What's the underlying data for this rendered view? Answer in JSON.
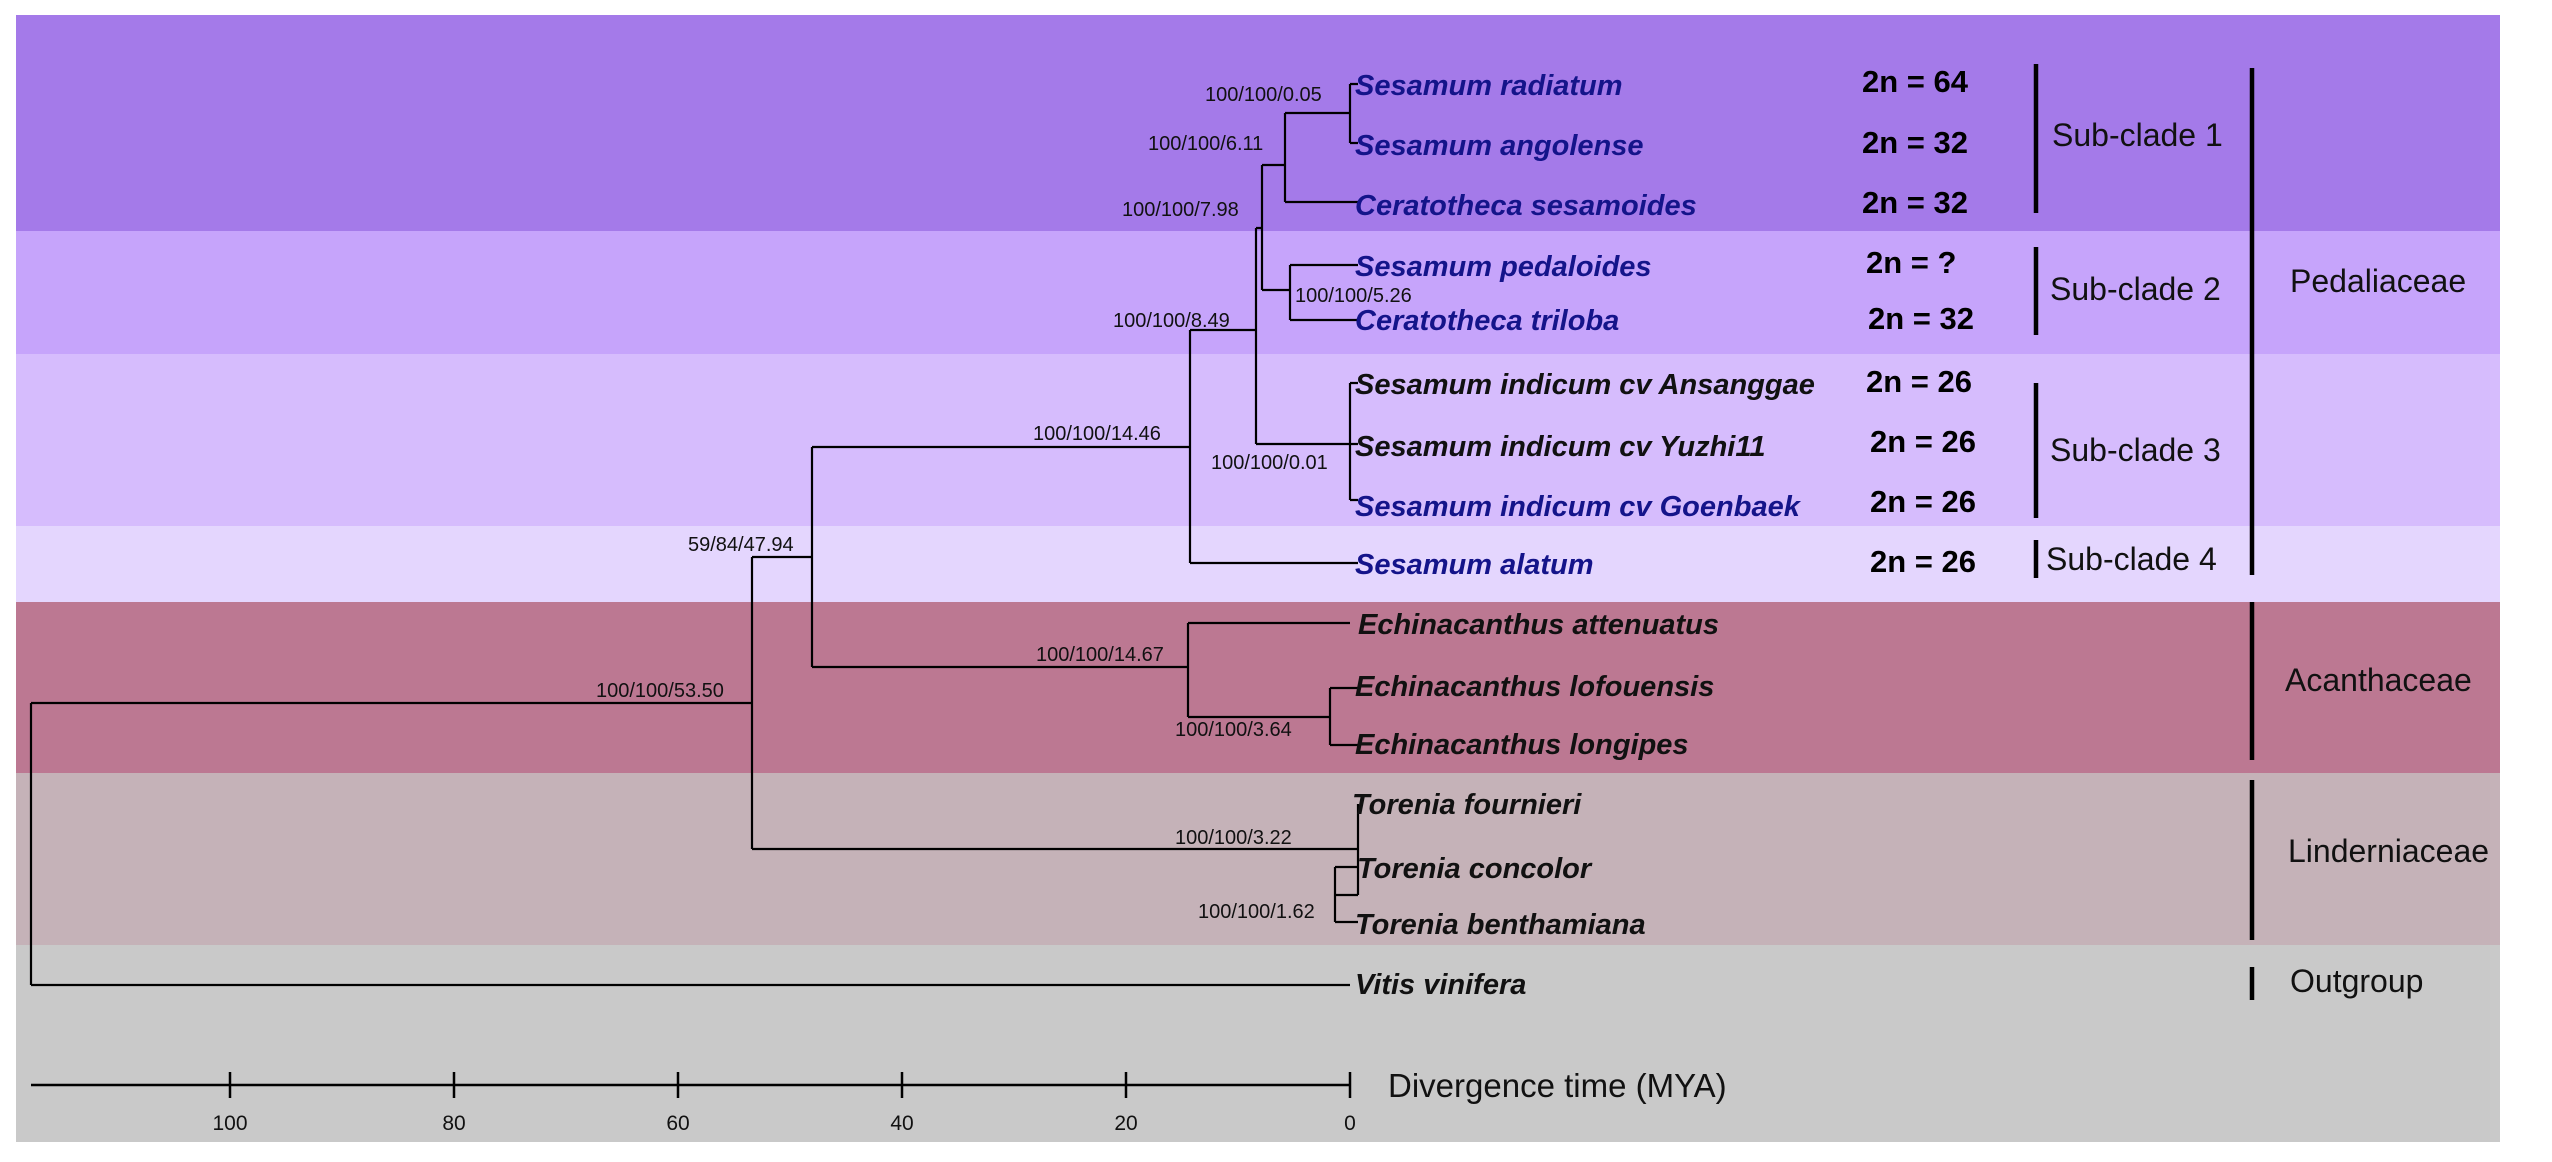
{
  "colors": {
    "band_subclade1": "#a47ae9",
    "band_subclade2": "#c6a4fb",
    "band_subclade3": "#d6bcfd",
    "band_subclade4": "#e4d6fe",
    "band_acanthaceae": "#bc7892",
    "band_linderniaceae": "#c5b2b8",
    "band_outgroup": "#c9c9c9",
    "taxon_blue": "#14148a",
    "taxon_black": "#111111",
    "line": "#000000"
  },
  "taxa": [
    {
      "id": "s-radiatum",
      "name": "Sesamum radiatum",
      "color": "blue"
    },
    {
      "id": "s-angolense",
      "name": "Sesamum angolense",
      "color": "blue"
    },
    {
      "id": "c-sesamoides",
      "name": "Ceratotheca sesamoides",
      "color": "blue"
    },
    {
      "id": "s-pedaloides",
      "name": "Sesamum pedaloides",
      "color": "blue"
    },
    {
      "id": "c-triloba",
      "name": "Ceratotheca triloba",
      "color": "blue"
    },
    {
      "id": "s-indicum-ansanggae",
      "name": "Sesamum indicum cv Ansanggae",
      "color": "black"
    },
    {
      "id": "s-indicum-yuzhi11",
      "name": "Sesamum indicum cv Yuzhi11",
      "color": "black"
    },
    {
      "id": "s-indicum-goenbaek",
      "name": "Sesamum indicum cv Goenbaek",
      "color": "blue"
    },
    {
      "id": "s-alatum",
      "name": "Sesamum alatum",
      "color": "blue"
    },
    {
      "id": "e-attenuatus",
      "name": "Echinacanthus attenuatus",
      "color": "black"
    },
    {
      "id": "e-lofouensis",
      "name": "Echinacanthus lofouensis",
      "color": "black"
    },
    {
      "id": "e-longipes",
      "name": "Echinacanthus longipes",
      "color": "black"
    },
    {
      "id": "t-fournieri",
      "name": "Torenia fournieri",
      "color": "black"
    },
    {
      "id": "t-concolor",
      "name": "Torenia concolor",
      "color": "black"
    },
    {
      "id": "t-benthamiana",
      "name": "Torenia benthamiana",
      "color": "black"
    },
    {
      "id": "v-vinifera",
      "name": "Vitis vinifera",
      "color": "black"
    }
  ],
  "chromosomes": [
    {
      "taxon": "s-radiatum",
      "label": "2n = 64"
    },
    {
      "taxon": "s-angolense",
      "label": "2n = 32"
    },
    {
      "taxon": "c-sesamoides",
      "label": "2n = 32"
    },
    {
      "taxon": "s-pedaloides",
      "label": "2n = ?"
    },
    {
      "taxon": "c-triloba",
      "label": "2n = 32"
    },
    {
      "taxon": "s-indicum-ansanggae",
      "label": "2n = 26"
    },
    {
      "taxon": "s-indicum-yuzhi11",
      "label": "2n = 26"
    },
    {
      "taxon": "s-indicum-goenbaek",
      "label": "2n = 26"
    },
    {
      "taxon": "s-alatum",
      "label": "2n = 26"
    }
  ],
  "nodes": [
    {
      "id": "n1",
      "label": "100/100/0.05",
      "age_mya": 0.05
    },
    {
      "id": "n2",
      "label": "100/100/6.11",
      "age_mya": 6.11
    },
    {
      "id": "n3",
      "label": "100/100/5.26",
      "age_mya": 5.26
    },
    {
      "id": "n4",
      "label": "100/100/7.98",
      "age_mya": 7.98
    },
    {
      "id": "n5",
      "label": "100/100/0.01",
      "age_mya": 0.01
    },
    {
      "id": "n6",
      "label": "100/100/8.49",
      "age_mya": 8.49
    },
    {
      "id": "n7",
      "label": "100/100/14.46",
      "age_mya": 14.46
    },
    {
      "id": "n8",
      "label": "100/100/3.64",
      "age_mya": 3.64
    },
    {
      "id": "n9",
      "label": "100/100/14.67",
      "age_mya": 14.67
    },
    {
      "id": "n10",
      "label": "59/84/47.94",
      "age_mya": 47.94
    },
    {
      "id": "n11",
      "label": "100/100/1.62",
      "age_mya": 1.62
    },
    {
      "id": "n12",
      "label": "100/100/3.22",
      "age_mya": 3.22
    },
    {
      "id": "n13",
      "label": "100/100/53.50",
      "age_mya": 53.5
    }
  ],
  "subclades": [
    {
      "id": "sub-clade-1",
      "label": "Sub-clade 1"
    },
    {
      "id": "sub-clade-2",
      "label": "Sub-clade 2"
    },
    {
      "id": "sub-clade-3",
      "label": "Sub-clade 3"
    },
    {
      "id": "sub-clade-4",
      "label": "Sub-clade 4"
    }
  ],
  "families": [
    {
      "id": "pedaliaceae",
      "label": "Pedaliaceae"
    },
    {
      "id": "acanthaceae",
      "label": "Acanthaceae"
    },
    {
      "id": "linderniaceae",
      "label": "Linderniaceae"
    },
    {
      "id": "outgroup",
      "label": "Outgroup"
    }
  ],
  "axis": {
    "title": "Divergence time (MYA)",
    "ticks": [
      {
        "value": 100,
        "label": "100"
      },
      {
        "value": 80,
        "label": "80"
      },
      {
        "value": 60,
        "label": "60"
      },
      {
        "value": 40,
        "label": "40"
      },
      {
        "value": 20,
        "label": "20"
      },
      {
        "value": 0,
        "label": "0"
      }
    ]
  }
}
